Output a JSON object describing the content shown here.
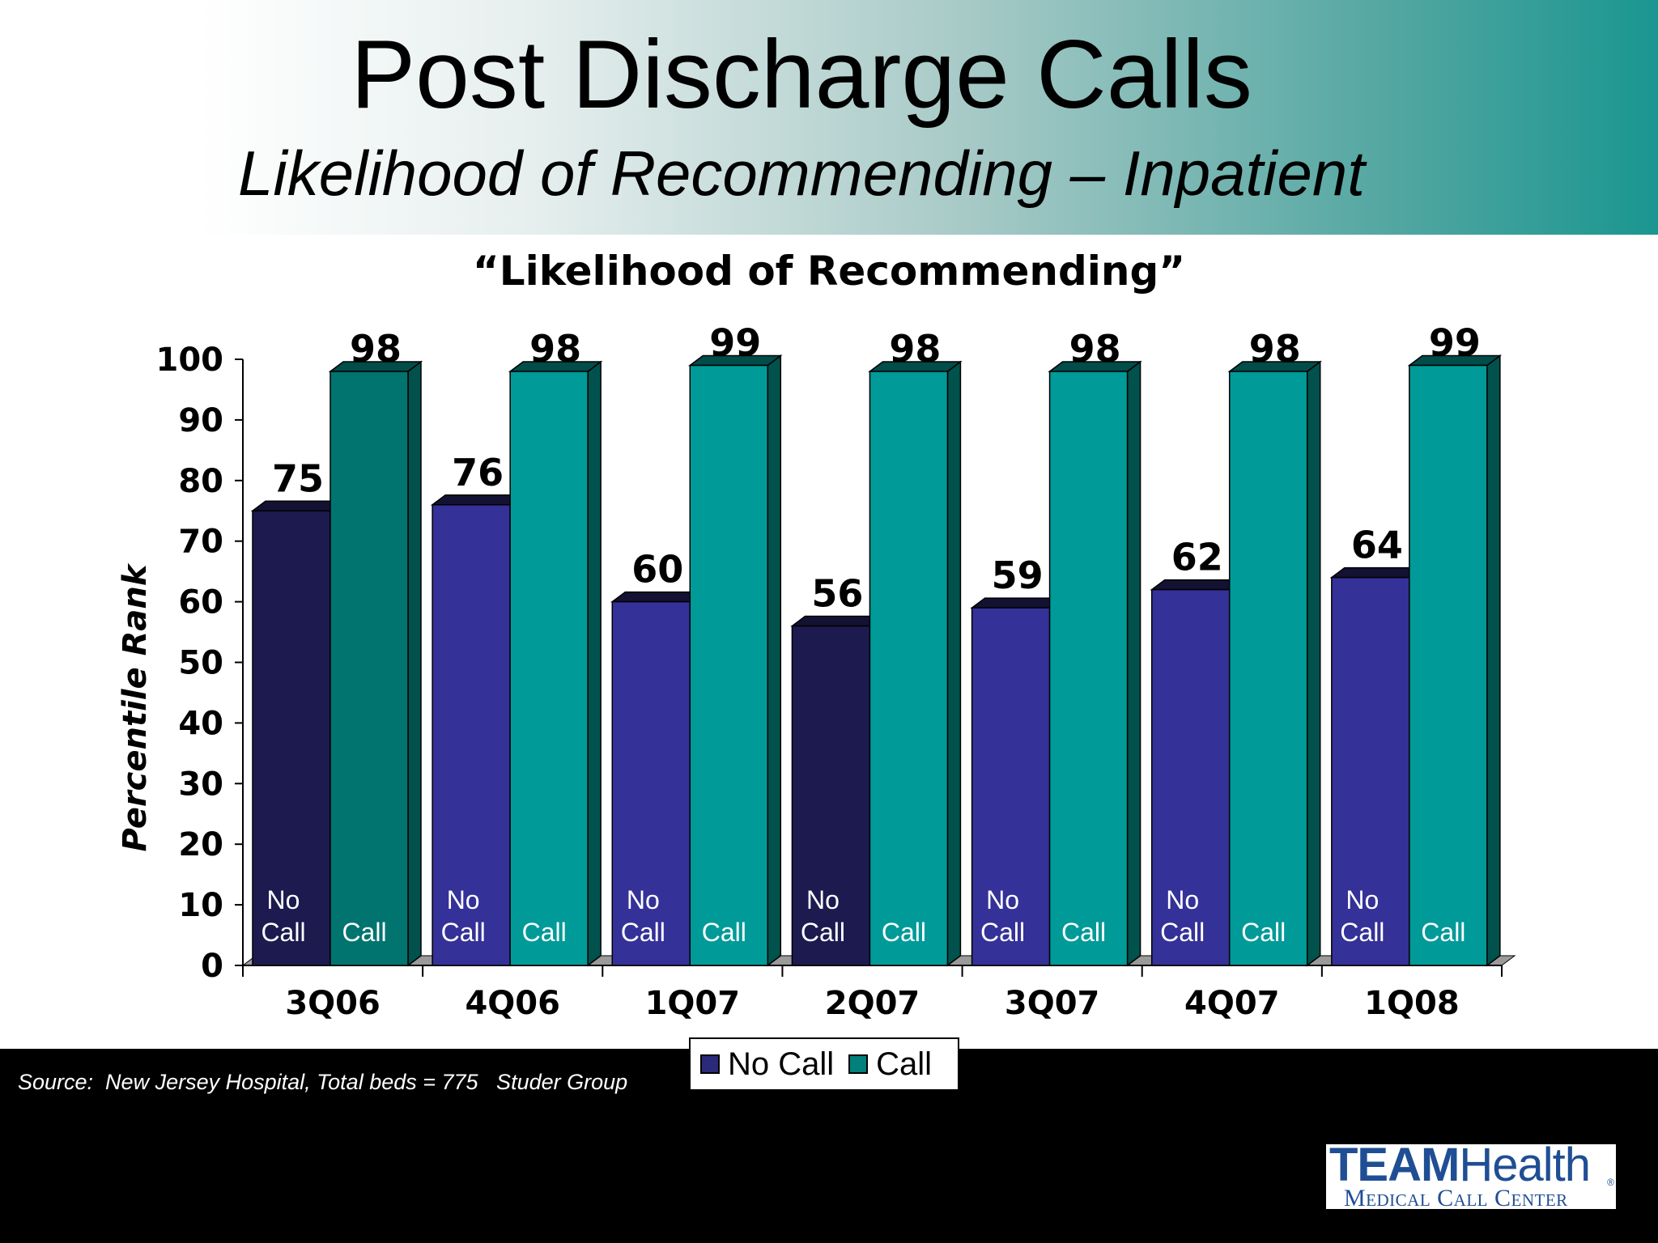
{
  "header": {
    "title": "Post Discharge Calls",
    "subtitle": "Likelihood of Recommending – Inpatient"
  },
  "chart_data": {
    "type": "bar",
    "title": "“Likelihood of Recommending”",
    "ylabel": "Percentile Rank",
    "xlabel": "",
    "ylim": [
      0,
      100
    ],
    "yticks": [
      "0",
      "10",
      "20",
      "30",
      "40",
      "50",
      "60",
      "70",
      "80",
      "90",
      "100"
    ],
    "categories": [
      "3Q06",
      "4Q06",
      "1Q07",
      "2Q07",
      "3Q07",
      "4Q07",
      "1Q08"
    ],
    "series": [
      {
        "name": "No Call",
        "values": [
          75,
          76,
          60,
          56,
          59,
          62,
          64
        ],
        "in_bar_label": [
          "No",
          "Call"
        ]
      },
      {
        "name": "Call",
        "values": [
          98,
          98,
          99,
          98,
          98,
          98,
          99
        ],
        "in_bar_label": [
          "Call"
        ]
      }
    ],
    "colors": {
      "no_call": "#343198",
      "no_call_dark": "#1c1a4f",
      "call": "#009a98",
      "call_dark": "#01746f"
    },
    "grid": false,
    "legend_position": "bottom-center",
    "legend": [
      "No Call",
      "Call"
    ]
  },
  "footer": {
    "source": "Source:  New Jersey Hospital, Total beds = 775   Studer Group"
  },
  "logo": {
    "team": "TEAM",
    "health": "Health",
    "registered": "®",
    "subtitle": "Medical Call Center"
  }
}
